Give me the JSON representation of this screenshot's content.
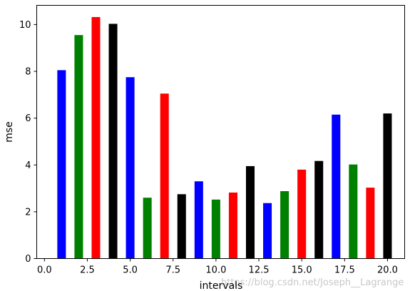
{
  "chart_data": {
    "type": "bar",
    "xlabel": "intervals",
    "ylabel": "mse",
    "xlim": [
      -0.45,
      21.0
    ],
    "ylim": [
      0,
      10.82
    ],
    "xticks": [
      "0.0",
      "2.5",
      "5.0",
      "7.5",
      "10.0",
      "12.5",
      "15.0",
      "17.5",
      "20.0"
    ],
    "xtick_values": [
      0,
      2.5,
      5,
      7.5,
      10,
      12.5,
      15,
      17.5,
      20
    ],
    "yticks": [
      "0",
      "2",
      "4",
      "6",
      "8",
      "10"
    ],
    "ytick_values": [
      0,
      2,
      4,
      6,
      8,
      10
    ],
    "bar_width": 0.5,
    "x": [
      1,
      2,
      3,
      4,
      5,
      6,
      7,
      8,
      9,
      10,
      11,
      12,
      13,
      14,
      15,
      16,
      17,
      18,
      19,
      20
    ],
    "values": [
      8.05,
      9.55,
      10.32,
      10.03,
      7.75,
      2.6,
      7.05,
      2.75,
      3.3,
      2.52,
      2.82,
      3.95,
      2.37,
      2.88,
      3.8,
      4.17,
      6.15,
      4.02,
      3.03,
      6.2
    ],
    "colors": [
      "#0000ff",
      "#008000",
      "#ff0000",
      "#000000",
      "#0000ff",
      "#008000",
      "#ff0000",
      "#000000",
      "#0000ff",
      "#008000",
      "#ff0000",
      "#000000",
      "#0000ff",
      "#008000",
      "#ff0000",
      "#000000",
      "#0000ff",
      "#008000",
      "#ff0000",
      "#000000"
    ],
    "grid": false,
    "legend": "none"
  },
  "watermark": "https://blog.csdn.net/Joseph__Lagrange"
}
